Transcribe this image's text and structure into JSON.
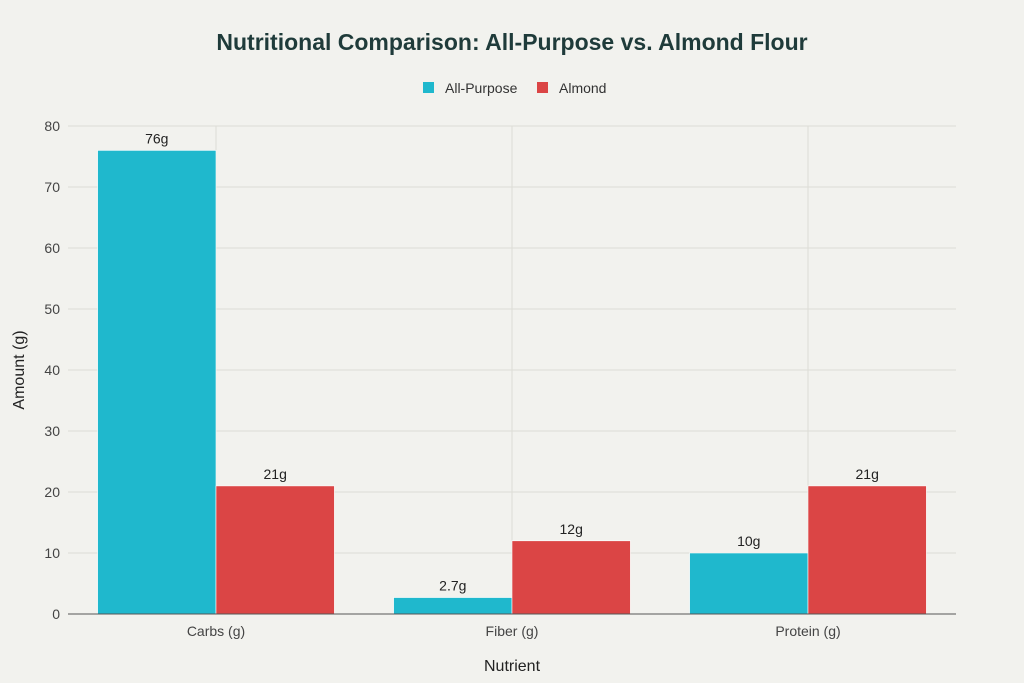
{
  "chart_data": {
    "type": "bar",
    "title": "Nutritional Comparison: All-Purpose vs. Almond Flour",
    "xlabel": "Nutrient",
    "ylabel": "Amount (g)",
    "categories": [
      "Carbs (g)",
      "Fiber (g)",
      "Protein (g)"
    ],
    "series": [
      {
        "name": "All-Purpose",
        "color": "#1fb8cd",
        "values": [
          76,
          2.7,
          10
        ],
        "labels": [
          "76g",
          "2.7g",
          "10g"
        ]
      },
      {
        "name": "Almond",
        "color": "#db4545",
        "values": [
          21,
          12,
          21
        ],
        "labels": [
          "21g",
          "12g",
          "21g"
        ]
      }
    ],
    "ylim": [
      0,
      80
    ],
    "yticks": [
      0,
      10,
      20,
      30,
      40,
      50,
      60,
      70,
      80
    ],
    "grid": true,
    "legend_position": "top-center"
  }
}
